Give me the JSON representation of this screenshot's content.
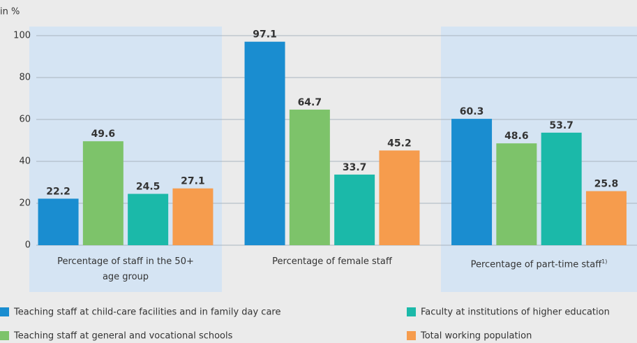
{
  "chart_data": {
    "type": "bar",
    "y_label": "in %",
    "categories": [
      "Percentage of staff in the 50+ age group",
      "Percentage of female staff",
      "Percentage of part-time staff"
    ],
    "category_footnotes": [
      null,
      null,
      "1)"
    ],
    "series": [
      {
        "name": "Teaching staff at child-care facilities and in family day care",
        "color": "#1a8dd0",
        "values": [
          22.2,
          97.1,
          60.3
        ]
      },
      {
        "name": "Teaching staff at general and vocational schools",
        "color": "#7dc36a",
        "values": [
          49.6,
          64.7,
          48.6
        ]
      },
      {
        "name": "Faculty at institutions of higher education",
        "color": "#1bb9a9",
        "values": [
          24.5,
          33.7,
          53.7
        ]
      },
      {
        "name": "Total working population",
        "color": "#f69c4d",
        "values": [
          27.1,
          45.2,
          25.8
        ]
      }
    ],
    "ylim": [
      0,
      100
    ],
    "yticks": [
      0,
      20,
      40,
      60,
      80,
      100
    ],
    "grid": true,
    "shaded_categories": [
      true,
      false,
      true
    ],
    "shade_color": "#d5e4f3"
  }
}
